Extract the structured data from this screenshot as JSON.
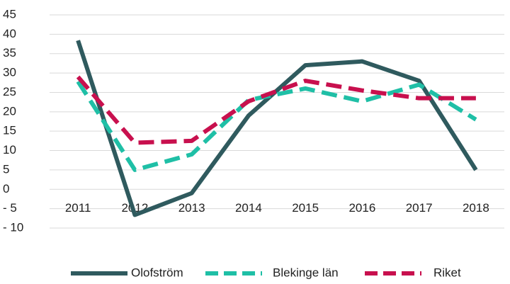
{
  "chart_data": {
    "type": "line",
    "categories": [
      "2011",
      "2012",
      "2013",
      "2014",
      "2015",
      "2016",
      "2017",
      "2018"
    ],
    "series": [
      {
        "name": "Olofström",
        "color": "#2f5a5e",
        "line_style": "solid",
        "values": [
          38.4,
          -6.6,
          -1,
          19,
          32,
          33,
          28,
          5
        ]
      },
      {
        "name": "Blekinge län",
        "color": "#1fbfa6",
        "line_style": "dashed",
        "values": [
          27.8,
          5,
          9,
          23,
          26,
          22.7,
          27,
          18
        ]
      },
      {
        "name": "Riket",
        "color": "#c8104e",
        "line_style": "dashed",
        "values": [
          29,
          12,
          12.5,
          22.7,
          28,
          25.5,
          23.5,
          23.5
        ]
      }
    ],
    "ylim": [
      -10,
      45
    ],
    "yticks": [
      {
        "value": -10,
        "label": "- 10"
      },
      {
        "value": -5,
        "label": "- 5"
      },
      0,
      5,
      10,
      15,
      20,
      25,
      30,
      35,
      40,
      45
    ],
    "grid": true,
    "legend": "bottom"
  }
}
